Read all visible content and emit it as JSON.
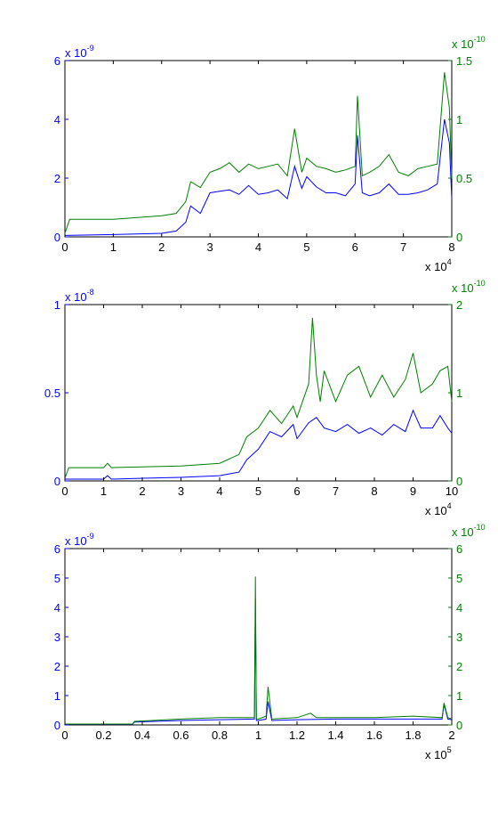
{
  "colors": {
    "left": "#0000ff",
    "right": "#007f00",
    "axis": "#000000"
  },
  "chart_data": [
    {
      "type": "line",
      "x_exponent": {
        "base": "x 10",
        "power": "4"
      },
      "left_exponent": {
        "base": "x 10",
        "power": "-9"
      },
      "right_exponent": {
        "base": "x 10",
        "power": "-10"
      },
      "xlim": [
        0,
        8
      ],
      "left_ylim": [
        0,
        6
      ],
      "right_ylim": [
        0,
        1.5
      ],
      "x_ticks": [
        "0",
        "1",
        "2",
        "3",
        "4",
        "5",
        "6",
        "7",
        "8"
      ],
      "left_ticks": [
        "0",
        "2",
        "4",
        "6"
      ],
      "right_ticks": [
        "0",
        "0.5",
        "1",
        "1.5"
      ],
      "series": [
        {
          "axis": "left",
          "color": "#0000ff",
          "x": [
            0,
            1,
            2,
            2.3,
            2.5,
            2.6,
            2.8,
            3.0,
            3.2,
            3.4,
            3.6,
            3.8,
            4.0,
            4.2,
            4.4,
            4.6,
            4.75,
            4.9,
            5.0,
            5.2,
            5.4,
            5.6,
            5.8,
            6.0,
            6.05,
            6.15,
            6.3,
            6.5,
            6.7,
            6.9,
            7.1,
            7.3,
            7.5,
            7.7,
            7.85,
            7.95,
            8.0
          ],
          "y": [
            0.05,
            0.08,
            0.12,
            0.2,
            0.5,
            1.05,
            0.8,
            1.5,
            1.55,
            1.6,
            1.45,
            1.75,
            1.45,
            1.5,
            1.6,
            1.3,
            2.4,
            1.65,
            2.05,
            1.7,
            1.5,
            1.5,
            1.4,
            1.8,
            3.45,
            1.5,
            1.4,
            1.5,
            1.8,
            1.45,
            1.45,
            1.5,
            1.6,
            1.8,
            4.0,
            3.2,
            1.3
          ]
        },
        {
          "axis": "right",
          "color": "#007f00",
          "x": [
            0,
            0.1,
            1,
            2,
            2.3,
            2.5,
            2.6,
            2.8,
            3.0,
            3.2,
            3.4,
            3.6,
            3.8,
            4.0,
            4.2,
            4.4,
            4.6,
            4.75,
            4.9,
            5.0,
            5.2,
            5.4,
            5.6,
            5.8,
            6.0,
            6.05,
            6.15,
            6.3,
            6.5,
            6.7,
            6.9,
            7.1,
            7.3,
            7.5,
            7.7,
            7.85,
            7.95,
            8.0
          ],
          "y": [
            0.03,
            0.15,
            0.15,
            0.18,
            0.2,
            0.3,
            0.47,
            0.42,
            0.55,
            0.58,
            0.63,
            0.55,
            0.62,
            0.58,
            0.6,
            0.62,
            0.52,
            0.92,
            0.55,
            0.67,
            0.6,
            0.58,
            0.55,
            0.57,
            0.6,
            1.2,
            0.52,
            0.55,
            0.6,
            0.7,
            0.55,
            0.52,
            0.58,
            0.6,
            0.62,
            1.4,
            1.1,
            0.5
          ]
        }
      ]
    },
    {
      "type": "line",
      "x_exponent": {
        "base": "x 10",
        "power": "4"
      },
      "left_exponent": {
        "base": "x 10",
        "power": "-8"
      },
      "right_exponent": {
        "base": "x 10",
        "power": "-10"
      },
      "xlim": [
        0,
        10
      ],
      "left_ylim": [
        0,
        1
      ],
      "right_ylim": [
        0,
        2
      ],
      "x_ticks": [
        "0",
        "1",
        "2",
        "3",
        "4",
        "5",
        "6",
        "7",
        "8",
        "9",
        "10"
      ],
      "left_ticks": [
        "0",
        "0.5",
        "1"
      ],
      "right_ticks": [
        "0",
        "1",
        "2"
      ],
      "series": [
        {
          "axis": "left",
          "color": "#0000ff",
          "x": [
            0,
            1,
            1.1,
            1.2,
            2,
            3,
            4,
            4.5,
            4.7,
            5.0,
            5.3,
            5.6,
            5.9,
            6.0,
            6.3,
            6.5,
            6.7,
            7.0,
            7.3,
            7.6,
            7.9,
            8.2,
            8.5,
            8.8,
            9.0,
            9.2,
            9.5,
            9.7,
            9.9,
            10
          ],
          "y": [
            0.01,
            0.01,
            0.03,
            0.01,
            0.015,
            0.02,
            0.03,
            0.05,
            0.12,
            0.18,
            0.28,
            0.25,
            0.32,
            0.24,
            0.33,
            0.36,
            0.3,
            0.28,
            0.32,
            0.27,
            0.3,
            0.26,
            0.32,
            0.28,
            0.4,
            0.3,
            0.3,
            0.37,
            0.3,
            0.27
          ]
        },
        {
          "axis": "right",
          "color": "#007f00",
          "x": [
            0,
            0.1,
            1,
            1.1,
            1.2,
            2,
            3,
            4,
            4.5,
            4.7,
            5.0,
            5.3,
            5.6,
            5.9,
            6.0,
            6.3,
            6.4,
            6.5,
            6.6,
            6.7,
            7.0,
            7.3,
            7.6,
            7.9,
            8.2,
            8.5,
            8.8,
            9.0,
            9.2,
            9.5,
            9.7,
            9.9,
            10
          ],
          "y": [
            0.03,
            0.15,
            0.15,
            0.2,
            0.15,
            0.16,
            0.17,
            0.2,
            0.3,
            0.5,
            0.6,
            0.8,
            0.65,
            0.85,
            0.72,
            1.1,
            1.85,
            1.2,
            0.9,
            1.25,
            0.9,
            1.2,
            1.3,
            0.95,
            1.2,
            0.95,
            1.15,
            1.45,
            1.0,
            1.1,
            1.25,
            1.3,
            0.9
          ]
        }
      ]
    },
    {
      "type": "line",
      "x_exponent": {
        "base": "x 10",
        "power": "5"
      },
      "left_exponent": {
        "base": "x 10",
        "power": "-9"
      },
      "right_exponent": {
        "base": "x 10",
        "power": "-10"
      },
      "xlim": [
        0,
        2
      ],
      "left_ylim": [
        0,
        6
      ],
      "right_ylim": [
        0,
        6
      ],
      "x_ticks": [
        "0",
        "0.2",
        "0.4",
        "0.6",
        "0.8",
        "1",
        "1.2",
        "1.4",
        "1.6",
        "1.8",
        "2"
      ],
      "left_ticks": [
        "0",
        "1",
        "2",
        "3",
        "4",
        "5",
        "6"
      ],
      "right_ticks": [
        "0",
        "1",
        "2",
        "3",
        "4",
        "5",
        "6"
      ],
      "series": [
        {
          "axis": "left",
          "color": "#0000ff",
          "x": [
            0,
            0.35,
            0.36,
            0.6,
            0.8,
            0.98,
            0.985,
            0.99,
            1.0,
            1.04,
            1.05,
            1.07,
            1.2,
            1.4,
            1.6,
            1.8,
            1.95,
            1.96,
            1.98,
            2.0
          ],
          "y": [
            0.02,
            0.02,
            0.1,
            0.15,
            0.18,
            0.2,
            4.3,
            0.15,
            0.15,
            0.2,
            0.8,
            0.15,
            0.18,
            0.2,
            0.2,
            0.2,
            0.2,
            0.7,
            0.2,
            0.18
          ]
        },
        {
          "axis": "right",
          "color": "#007f00",
          "x": [
            0,
            0.35,
            0.36,
            0.6,
            0.8,
            0.98,
            0.985,
            0.99,
            1.0,
            1.04,
            1.05,
            1.07,
            1.2,
            1.27,
            1.3,
            1.4,
            1.6,
            1.8,
            1.95,
            1.96,
            1.98,
            2.0
          ],
          "y": [
            0.03,
            0.03,
            0.12,
            0.2,
            0.25,
            0.25,
            5.05,
            0.2,
            0.2,
            0.3,
            1.3,
            0.2,
            0.25,
            0.4,
            0.25,
            0.25,
            0.25,
            0.3,
            0.25,
            0.75,
            0.25,
            0.2
          ]
        }
      ]
    }
  ]
}
